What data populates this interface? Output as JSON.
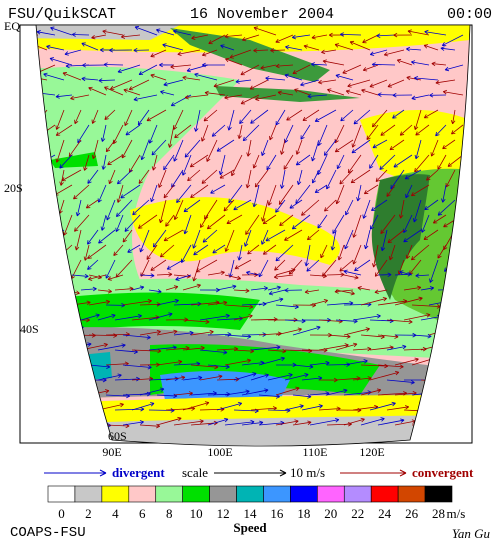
{
  "header": {
    "product": "FSU/QuikSCAT",
    "date": "16 November 2004",
    "time": "00:00"
  },
  "lat_labels": [
    "EQ",
    "20S",
    "40S",
    "60S"
  ],
  "lon_labels": [
    "90E",
    "100E",
    "110E",
    "120E"
  ],
  "legend": {
    "divergent": "divergent",
    "scale": "scale",
    "scale_value": "10 m/s",
    "convergent": "convergent"
  },
  "colorbar": {
    "labels": [
      0,
      2,
      4,
      6,
      8,
      10,
      12,
      14,
      16,
      18,
      20,
      22,
      24,
      26,
      28
    ],
    "unit": "m/s",
    "title": "Speed",
    "colors": [
      "#ffffff",
      "#c8c8c8",
      "#ffff00",
      "#ffc8c8",
      "#98f898",
      "#00e000",
      "#969696",
      "#00b4b4",
      "#3c96ff",
      "#0000ff",
      "#ff64ff",
      "#b48cff",
      "#ff0000",
      "#d24600",
      "#000000"
    ]
  },
  "footer": {
    "left": "COAPS-FSU",
    "right": "Yan Gu"
  }
}
